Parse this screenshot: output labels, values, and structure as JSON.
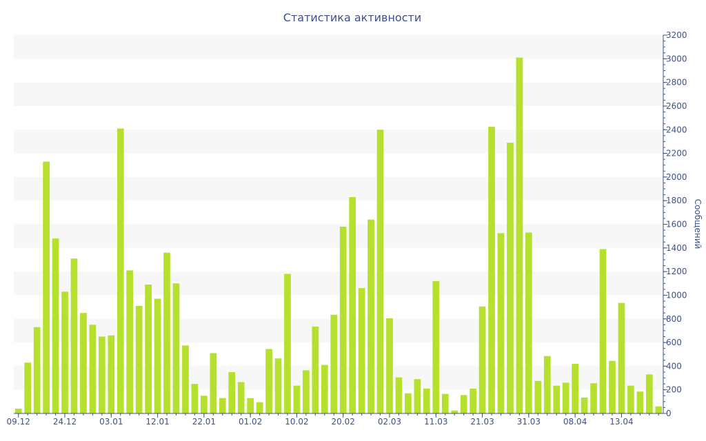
{
  "chart_data": {
    "type": "bar",
    "title": "Статистика активности",
    "ylabel": "Сообщений",
    "xlabel": "",
    "ylim": [
      0,
      3200
    ],
    "y_ticks": [
      0,
      200,
      400,
      600,
      800,
      1000,
      1200,
      1400,
      1600,
      1800,
      2000,
      2200,
      2400,
      2600,
      2800,
      3000,
      3200
    ],
    "x_tick_labels": [
      "09.12",
      "24.12",
      "03.01",
      "12.01",
      "22.01",
      "01.02",
      "10.02",
      "20.02",
      "02.03",
      "11.03",
      "21.03",
      "31.03",
      "08.04",
      "13.04"
    ],
    "x_tick_index": [
      0,
      5,
      10,
      15,
      20,
      25,
      30,
      35,
      40,
      45,
      50,
      55,
      60,
      65
    ],
    "grid": "horizontal bands",
    "legend": "none",
    "colors": {
      "bar": "#b5e02d",
      "axis": "#3f4f8a",
      "band": "#f7f7f7"
    },
    "values": [
      40,
      430,
      730,
      2130,
      1480,
      1030,
      1310,
      850,
      750,
      650,
      660,
      2410,
      1210,
      910,
      1090,
      970,
      1360,
      1100,
      575,
      250,
      150,
      510,
      130,
      350,
      265,
      130,
      95,
      545,
      465,
      1180,
      235,
      365,
      735,
      410,
      835,
      1580,
      1830,
      1060,
      1640,
      2400,
      805,
      305,
      170,
      290,
      210,
      1120,
      165,
      25,
      155,
      210,
      905,
      2425,
      1525,
      2290,
      3010,
      1530,
      275,
      485,
      235,
      260,
      420,
      135,
      255,
      1390,
      445,
      935,
      235,
      185,
      330,
      60
    ]
  }
}
